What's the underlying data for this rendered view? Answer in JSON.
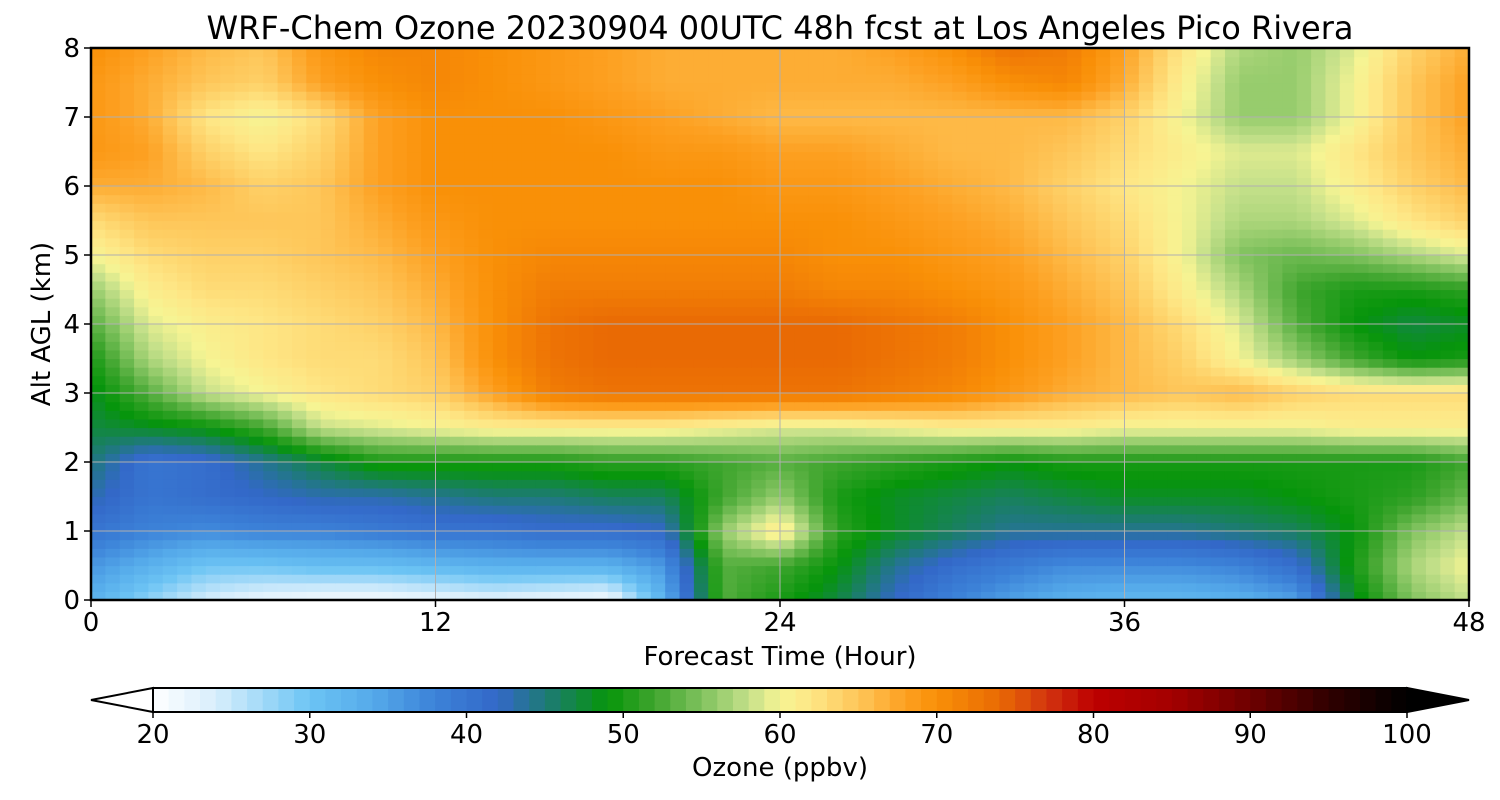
{
  "chart_data": {
    "type": "heatmap",
    "title": "WRF-Chem Ozone  20230904 00UTC 48h fcst at Los Angeles Pico Rivera",
    "xlabel": "Forecast Time (Hour)",
    "ylabel": "Alt AGL (km)",
    "xlim": [
      0,
      48
    ],
    "ylim": [
      0,
      8
    ],
    "xticks": [
      "0",
      "12",
      "24",
      "36",
      "48"
    ],
    "yticks": [
      "0",
      "1",
      "2",
      "3",
      "4",
      "5",
      "6",
      "7",
      "8"
    ],
    "grid": true,
    "x": [
      0,
      2,
      4,
      6,
      8,
      10,
      12,
      14,
      16,
      18,
      20,
      22,
      24,
      26,
      28,
      30,
      32,
      34,
      36,
      38,
      40,
      42,
      44,
      46,
      48
    ],
    "y": [
      0,
      0.5,
      1,
      1.5,
      2,
      2.5,
      3,
      3.5,
      4,
      4.5,
      5,
      5.5,
      6,
      6.5,
      7,
      7.5,
      8
    ],
    "z": [
      [
        33,
        28,
        24,
        22,
        21,
        21,
        22,
        23,
        22,
        21,
        33,
        53,
        50,
        47,
        42,
        38,
        35,
        33,
        32,
        32,
        33,
        35,
        48,
        55,
        58
      ],
      [
        36,
        33,
        30,
        30,
        31,
        31,
        32,
        33,
        33,
        33,
        36,
        53,
        52,
        49,
        44,
        41,
        39,
        37,
        37,
        37,
        38,
        41,
        50,
        57,
        60
      ],
      [
        40,
        38,
        37,
        38,
        38,
        39,
        40,
        40,
        41,
        41,
        42,
        56,
        62,
        51,
        48,
        46,
        44,
        44,
        44,
        44,
        45,
        46,
        49,
        55,
        58
      ],
      [
        43,
        40,
        41,
        42,
        43,
        43,
        44,
        45,
        45,
        46,
        46,
        52,
        56,
        50,
        48,
        47,
        46,
        47,
        48,
        48,
        48,
        49,
        50,
        51,
        54
      ],
      [
        45,
        40,
        41,
        44,
        47,
        50,
        50,
        50,
        50,
        51,
        51,
        52,
        53,
        52,
        51,
        50,
        49,
        50,
        50,
        50,
        50,
        50,
        50,
        50,
        52
      ],
      [
        47,
        48,
        49,
        52,
        58,
        59,
        60,
        61,
        61,
        61,
        61,
        60,
        59,
        59,
        60,
        61,
        61,
        61,
        60,
        60,
        60,
        60,
        61,
        61,
        61
      ],
      [
        48,
        53,
        58,
        60,
        62,
        63,
        64,
        68,
        72,
        73,
        73,
        73,
        73,
        73,
        72,
        71,
        69,
        67,
        66,
        65,
        66,
        64,
        63,
        63,
        63
      ],
      [
        50,
        57,
        60,
        62,
        63,
        63,
        65,
        70,
        73,
        74,
        74,
        74,
        74,
        74,
        73,
        72,
        70,
        68,
        66,
        64,
        60,
        56,
        52,
        49,
        50
      ],
      [
        53,
        59,
        61,
        62,
        63,
        64,
        66,
        70,
        73,
        74,
        74,
        74,
        74,
        74,
        73,
        72,
        70,
        68,
        66,
        63,
        59,
        53,
        49,
        47,
        48
      ],
      [
        56,
        61,
        63,
        63,
        64,
        65,
        67,
        70,
        72,
        72,
        72,
        72,
        72,
        71,
        71,
        70,
        69,
        67,
        65,
        61,
        57,
        52,
        50,
        50,
        51
      ],
      [
        60,
        63,
        64,
        64,
        65,
        66,
        68,
        70,
        71,
        71,
        71,
        71,
        71,
        70,
        70,
        69,
        68,
        66,
        64,
        60,
        55,
        54,
        55,
        57,
        59
      ],
      [
        63,
        65,
        65,
        65,
        65,
        67,
        69,
        70,
        70,
        70,
        70,
        70,
        70,
        70,
        69,
        68,
        67,
        65,
        63,
        60,
        57,
        57,
        59,
        62,
        64
      ],
      [
        67,
        67,
        66,
        64,
        65,
        68,
        70,
        70,
        70,
        70,
        70,
        70,
        69,
        69,
        68,
        67,
        66,
        64,
        62,
        60,
        58,
        58,
        61,
        64,
        66
      ],
      [
        69,
        68,
        64,
        62,
        64,
        68,
        70,
        70,
        70,
        70,
        69,
        69,
        68,
        68,
        67,
        66,
        66,
        65,
        63,
        61,
        59,
        59,
        62,
        65,
        67
      ],
      [
        69,
        67,
        62,
        60,
        63,
        68,
        70,
        70,
        70,
        69,
        68,
        67,
        66,
        66,
        66,
        66,
        66,
        66,
        64,
        60,
        56,
        56,
        60,
        65,
        68
      ],
      [
        69,
        67,
        65,
        64,
        68,
        70,
        71,
        70,
        69,
        68,
        67,
        67,
        67,
        67,
        67,
        68,
        70,
        71,
        67,
        61,
        56,
        56,
        60,
        65,
        68
      ],
      [
        70,
        68,
        66,
        65,
        69,
        71,
        71,
        70,
        69,
        68,
        67,
        67,
        67,
        67,
        68,
        70,
        73,
        72,
        68,
        62,
        57,
        56,
        59,
        64,
        67
      ]
    ],
    "colorbar": {
      "label": "Ozone  (ppbv)",
      "min": 20,
      "max": 100,
      "ticks": [
        "20",
        "30",
        "40",
        "50",
        "60",
        "70",
        "80",
        "90",
        "100"
      ],
      "extend": "both",
      "stops": [
        [
          20,
          "#ffffff"
        ],
        [
          24,
          "#d8eefc"
        ],
        [
          30,
          "#6cc4f4"
        ],
        [
          34,
          "#55aaea"
        ],
        [
          38,
          "#3c82d8"
        ],
        [
          42,
          "#3368c8"
        ],
        [
          45,
          "#1e7a78"
        ],
        [
          49,
          "#06950a"
        ],
        [
          52,
          "#3fa52e"
        ],
        [
          55,
          "#80c25e"
        ],
        [
          58,
          "#c4e08a"
        ],
        [
          60,
          "#f6f493"
        ],
        [
          62,
          "#fee685"
        ],
        [
          65,
          "#fec659"
        ],
        [
          68,
          "#fda021"
        ],
        [
          70,
          "#f99007"
        ],
        [
          74,
          "#e96a04"
        ],
        [
          77,
          "#d2350f"
        ],
        [
          80,
          "#bd0000"
        ],
        [
          85,
          "#a30000"
        ],
        [
          90,
          "#6e0000"
        ],
        [
          95,
          "#300000"
        ],
        [
          100,
          "#000000"
        ]
      ]
    }
  }
}
